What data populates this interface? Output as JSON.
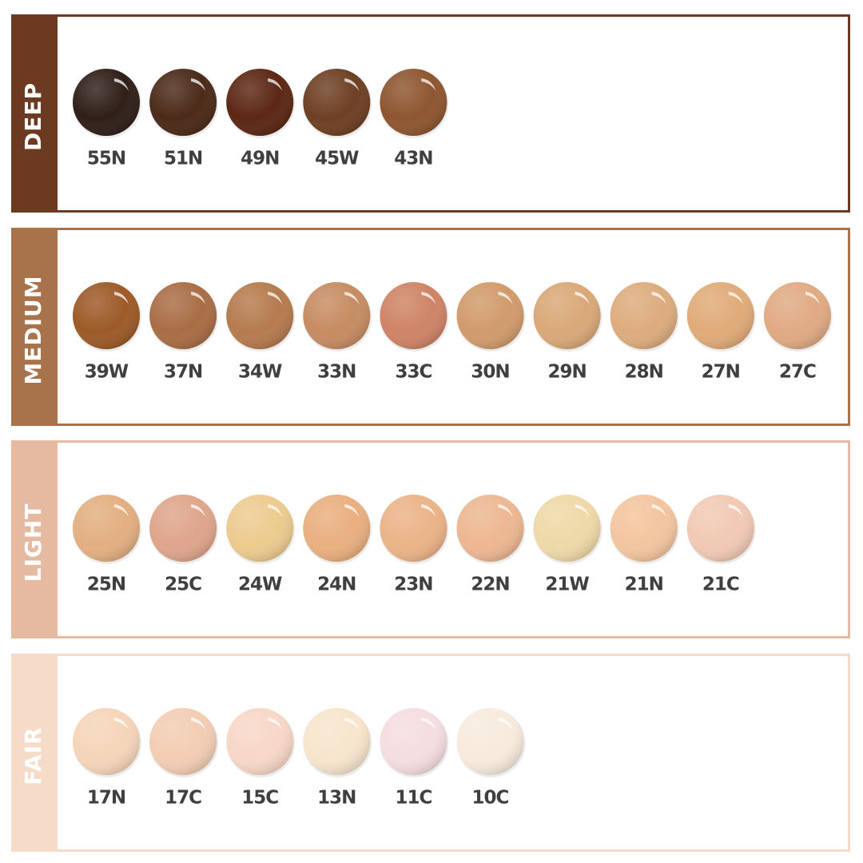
{
  "groups": [
    {
      "label": "DEEP",
      "color": "#6b3a21",
      "shades": [
        {
          "name": "55N",
          "color": "#2f1f18"
        },
        {
          "name": "51N",
          "color": "#4b2a18"
        },
        {
          "name": "49N",
          "color": "#5c2714"
        },
        {
          "name": "45W",
          "color": "#6d4023"
        },
        {
          "name": "43N",
          "color": "#8e5630"
        }
      ]
    },
    {
      "label": "MEDIUM",
      "color": "#a8734a",
      "shades": [
        {
          "name": "39W",
          "color": "#9d5a28"
        },
        {
          "name": "37N",
          "color": "#a96d45"
        },
        {
          "name": "34W",
          "color": "#b57b4e"
        },
        {
          "name": "33N",
          "color": "#c68c62"
        },
        {
          "name": "33C",
          "color": "#ce8466"
        },
        {
          "name": "30N",
          "color": "#d19b6b"
        },
        {
          "name": "29N",
          "color": "#d9a878"
        },
        {
          "name": "28N",
          "color": "#ddac7d"
        },
        {
          "name": "27N",
          "color": "#e0ab78"
        },
        {
          "name": "27C",
          "color": "#e0aa83"
        }
      ]
    },
    {
      "label": "LIGHT",
      "color": "#e5baa1",
      "shades": [
        {
          "name": "25N",
          "color": "#e3af81"
        },
        {
          "name": "25C",
          "color": "#dea58b"
        },
        {
          "name": "24W",
          "color": "#edcb8f"
        },
        {
          "name": "24N",
          "color": "#e9af7f"
        },
        {
          "name": "23N",
          "color": "#ebb388"
        },
        {
          "name": "22N",
          "color": "#edb791"
        },
        {
          "name": "21W",
          "color": "#eed9a7"
        },
        {
          "name": "21N",
          "color": "#f3c59f"
        },
        {
          "name": "21C",
          "color": "#f1c9b5"
        }
      ]
    },
    {
      "label": "FAIR",
      "color": "#f6dcc8",
      "shades": [
        {
          "name": "17N",
          "color": "#f5d5b9"
        },
        {
          "name": "17C",
          "color": "#f3cdb3"
        },
        {
          "name": "15C",
          "color": "#f7d7c7"
        },
        {
          "name": "13N",
          "color": "#f7e5cd"
        },
        {
          "name": "11C",
          "color": "#f5dde1"
        },
        {
          "name": "10C",
          "color": "#f7ebdd"
        }
      ]
    }
  ]
}
